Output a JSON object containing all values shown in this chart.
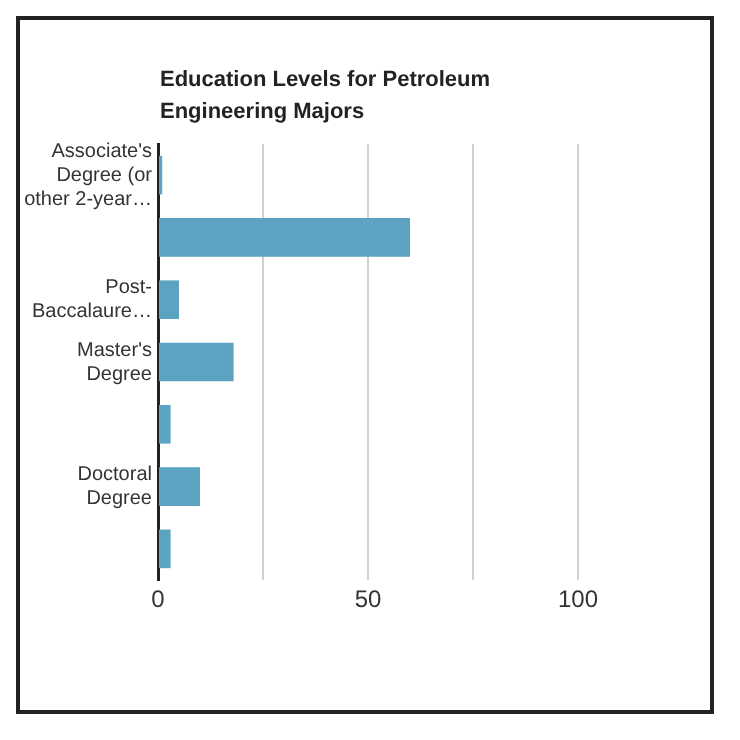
{
  "chart_data": {
    "type": "bar",
    "orientation": "horizontal",
    "title": "Education Levels for Petroleum Engineering Majors",
    "categories": [
      "Associate's Degree (or other 2-year…",
      null,
      "Post-Baccalaure…",
      "Master's Degree",
      null,
      "Doctoral Degree",
      null
    ],
    "values": [
      1,
      60,
      5,
      18,
      3,
      10,
      3
    ],
    "color": "#5ba3c0",
    "xlim": [
      0,
      100
    ],
    "xticks": [
      0,
      {
        "value": 25,
        "label": null
      },
      50,
      {
        "value": 75,
        "label": null
      },
      100
    ],
    "grid": "x",
    "legend": false
  }
}
